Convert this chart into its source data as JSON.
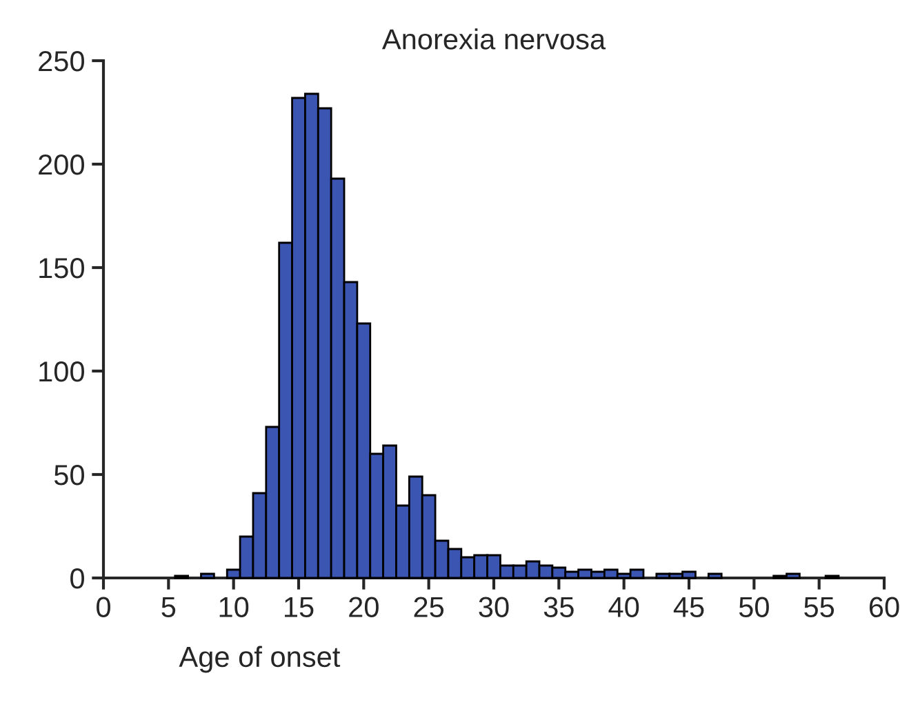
{
  "chart_data": {
    "type": "histogram",
    "title": "Anorexia nervosa",
    "xlabel": "Age of onset",
    "bins": [
      5.5,
      6.5,
      7.5,
      8.5,
      9.5,
      10.5,
      11.5,
      12.5,
      13.5,
      14.5,
      15.5,
      16.5,
      17.5,
      18.5,
      19.5,
      20.5,
      21.5,
      22.5,
      23.5,
      24.5,
      25.5,
      26.5,
      27.5,
      28.5,
      29.5,
      30.5,
      31.5,
      32.5,
      33.5,
      34.5,
      35.5,
      36.5,
      37.5,
      38.5,
      39.5,
      40.5,
      41.5,
      42.5,
      43.5,
      44.5,
      45.5,
      46.5,
      47.5,
      48.5,
      49.5,
      50.5,
      51.5,
      52.5,
      53.5,
      54.5,
      55.5,
      56.5
    ],
    "values": [
      1,
      0,
      2,
      0,
      4,
      20,
      41,
      73,
      162,
      232,
      234,
      227,
      193,
      143,
      123,
      60,
      64,
      35,
      49,
      40,
      18,
      14,
      10,
      11,
      11,
      6,
      6,
      8,
      6,
      5,
      3,
      4,
      3,
      4,
      2,
      4,
      0,
      2,
      2,
      3,
      0,
      2,
      0,
      0,
      0,
      0,
      1,
      2,
      0,
      0,
      1
    ],
    "color": "#3b55b3",
    "xlim": [
      0,
      60
    ],
    "xticks": [
      0,
      5,
      10,
      15,
      20,
      25,
      30,
      35,
      40,
      45,
      50,
      55,
      60
    ],
    "ylim": [
      0,
      250
    ],
    "yticks": [
      0,
      50,
      100,
      150,
      200,
      250
    ],
    "grid": false
  }
}
